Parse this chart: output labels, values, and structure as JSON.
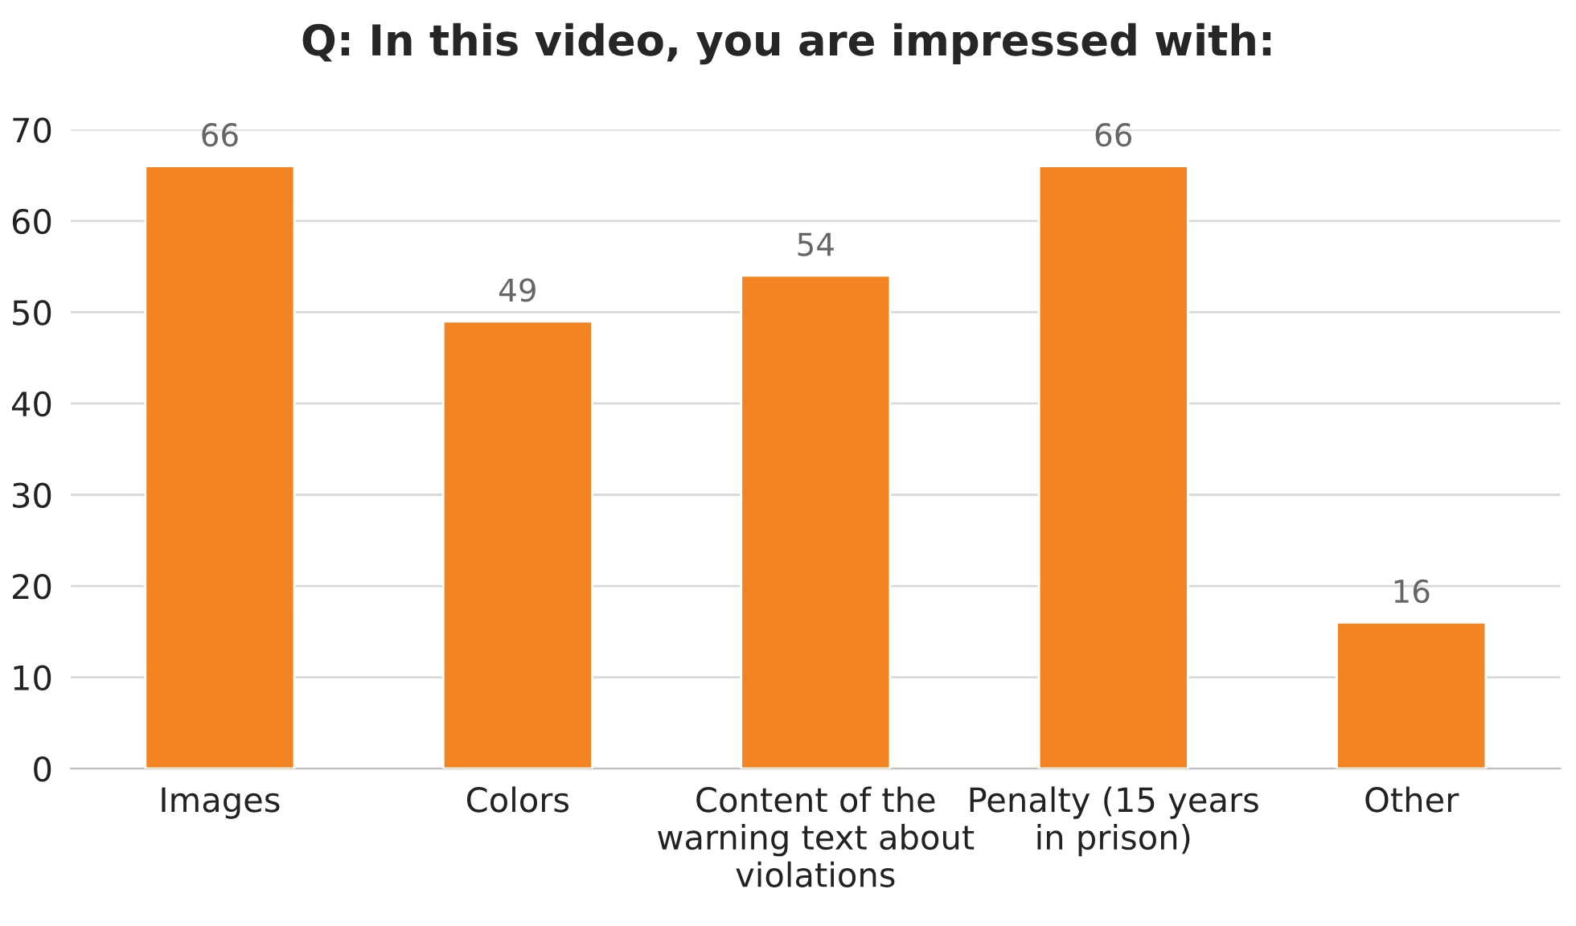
{
  "chart_data": {
    "type": "bar",
    "title": "Q: In this video, you are impressed with:",
    "categories": [
      "Images",
      "Colors",
      "Content of the warning text about violations",
      "Penalty (15 years in prison)",
      "Other"
    ],
    "values": [
      66,
      49,
      54,
      66,
      16
    ],
    "color": "#f28522",
    "ylim": [
      0,
      70
    ],
    "yticks": [
      0,
      10,
      20,
      30,
      40,
      50,
      60,
      70
    ],
    "grid": "y",
    "data_labels": true
  }
}
